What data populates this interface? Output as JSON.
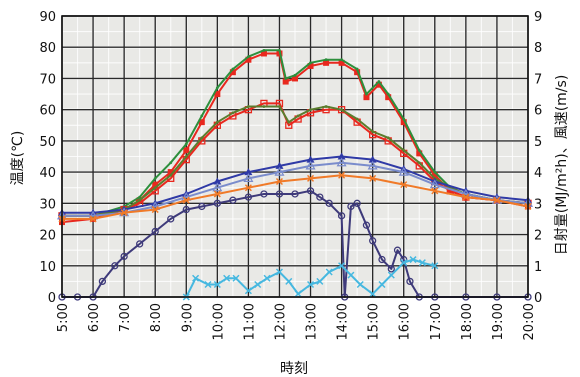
{
  "chart_data": {
    "type": "line",
    "xlabel": "時刻",
    "ylabel_left": "温度(℃)",
    "ylabel_right": "日射量(MJ/m²h)、風速(m/s)",
    "xlim": [
      5,
      20
    ],
    "ylim_left": [
      0,
      90
    ],
    "ylim_right": [
      0,
      9
    ],
    "grid": true,
    "x_tick_labels": [
      "5:00",
      "6:00",
      "7:00",
      "8:00",
      "9:00",
      "10:00",
      "11:00",
      "12:00",
      "13:00",
      "14:00",
      "15:00",
      "16:00",
      "17:00",
      "18:00",
      "19:00",
      "20:00"
    ],
    "y_left_tick_labels": [
      "0",
      "10",
      "20",
      "30",
      "40",
      "50",
      "60",
      "70",
      "80",
      "90"
    ],
    "y_right_tick_labels": [
      "0",
      "1",
      "2",
      "3",
      "4",
      "5",
      "6",
      "7",
      "8",
      "9"
    ],
    "series": [
      {
        "color": "#e8281e",
        "marker": "square-filled",
        "axis": "left",
        "x": [
          5,
          6,
          7,
          7.5,
          8,
          8.5,
          9,
          9.5,
          10,
          10.5,
          11,
          11.5,
          12,
          12.2,
          12.5,
          13,
          13.5,
          14,
          14.5,
          14.8,
          15.2,
          15.5,
          16,
          16.5,
          17,
          17.5,
          18,
          19,
          20
        ],
        "y": [
          24,
          25,
          28,
          31,
          36,
          40,
          47,
          56,
          65,
          72,
          76,
          78,
          78,
          69,
          70,
          74,
          75,
          75,
          72,
          64,
          68,
          64,
          56,
          46,
          39,
          34,
          32,
          31,
          29
        ]
      },
      {
        "color": "#2d8f3c",
        "marker": "line",
        "axis": "left",
        "x": [
          5,
          6,
          7,
          7.5,
          8,
          8.5,
          9,
          9.5,
          10,
          10.5,
          11,
          11.5,
          12,
          12.2,
          12.5,
          13,
          13.5,
          14,
          14.5,
          14.8,
          15.2,
          15.5,
          16,
          16.5,
          17,
          17.5,
          18,
          19,
          20
        ],
        "y": [
          26,
          26,
          29,
          32,
          38,
          43,
          49,
          58,
          67,
          73,
          77,
          79,
          79,
          70,
          71,
          75,
          76,
          76,
          73,
          65,
          69,
          65,
          57,
          47,
          40,
          35,
          33,
          31,
          30
        ]
      },
      {
        "color": "#e8281e",
        "marker": "square-open",
        "axis": "left",
        "x": [
          5,
          6,
          7,
          7.5,
          8,
          8.5,
          9,
          9.5,
          10,
          10.5,
          11,
          11.5,
          12,
          12.3,
          12.6,
          13,
          13.5,
          14,
          14.5,
          15,
          15.5,
          16,
          16.5,
          17,
          17.5,
          18,
          19,
          20
        ],
        "y": [
          26,
          26,
          28,
          30,
          34,
          38,
          44,
          50,
          55,
          58,
          60,
          62,
          62,
          55,
          57,
          59,
          60,
          60,
          56,
          52,
          50,
          46,
          42,
          37,
          34,
          32,
          31,
          30
        ]
      },
      {
        "color": "#5a7e2e",
        "marker": "line",
        "axis": "left",
        "x": [
          5,
          6,
          7,
          7.5,
          8,
          8.5,
          9,
          9.5,
          10,
          10.5,
          11,
          11.5,
          12,
          12.3,
          12.6,
          13,
          13.5,
          14,
          14.5,
          15,
          15.5,
          16,
          16.5,
          17,
          17.5,
          18,
          19,
          20
        ],
        "y": [
          26,
          26,
          28,
          31,
          35,
          39,
          45,
          51,
          56,
          59,
          61,
          61,
          61,
          56,
          58,
          60,
          61,
          60,
          57,
          53,
          51,
          47,
          43,
          38,
          35,
          33,
          31,
          30
        ]
      },
      {
        "color": "#2f3aa6",
        "marker": "triangle-filled",
        "axis": "left",
        "x": [
          5,
          6,
          7,
          8,
          9,
          10,
          11,
          12,
          13,
          14,
          15,
          16,
          17,
          18,
          19,
          20
        ],
        "y": [
          27,
          27,
          28,
          30,
          33,
          37,
          40,
          42,
          44,
          45,
          44,
          41,
          37,
          34,
          32,
          31
        ]
      },
      {
        "color": "#7a8ccc",
        "marker": "triangle-open",
        "axis": "left",
        "x": [
          5,
          6,
          7,
          8,
          9,
          10,
          11,
          12,
          13,
          14,
          15,
          16,
          17,
          18,
          19,
          20
        ],
        "y": [
          26,
          26,
          27,
          29,
          32,
          35,
          38,
          40,
          42,
          43,
          42,
          40,
          36,
          33,
          31,
          30
        ]
      },
      {
        "color": "#f07a28",
        "marker": "x",
        "axis": "left",
        "x": [
          5,
          6,
          7,
          8,
          9,
          10,
          11,
          12,
          13,
          14,
          15,
          16,
          17,
          18,
          19,
          20
        ],
        "y": [
          25,
          25,
          27,
          28,
          31,
          33,
          35,
          37,
          38,
          39,
          38,
          36,
          34,
          32,
          31,
          29
        ]
      },
      {
        "color": "#3e3a7a",
        "marker": "circle-open",
        "axis": "right",
        "x": [
          5,
          5.5,
          6,
          6.3,
          6.7,
          7,
          7.5,
          8,
          8.5,
          9,
          9.5,
          10,
          10.5,
          11,
          11.5,
          12,
          12.5,
          13,
          13.3,
          13.6,
          14,
          14.1,
          14.3,
          14.5,
          14.8,
          15,
          15.3,
          15.6,
          15.8,
          16,
          16.2,
          16.5,
          17,
          18,
          19,
          20
        ],
        "y": [
          0,
          0,
          0,
          0.5,
          1,
          1.3,
          1.7,
          2.1,
          2.5,
          2.8,
          2.9,
          3.0,
          3.1,
          3.2,
          3.3,
          3.3,
          3.3,
          3.4,
          3.2,
          3.0,
          2.6,
          0,
          2.9,
          3.0,
          2.3,
          1.8,
          1.2,
          0.9,
          1.5,
          1.2,
          0.5,
          0,
          0,
          0,
          0,
          0
        ]
      },
      {
        "color": "#46b8e0",
        "marker": "x",
        "axis": "right",
        "x": [
          9,
          9.3,
          9.7,
          10,
          10.3,
          10.6,
          11,
          11.3,
          11.6,
          12,
          12.3,
          12.6,
          13,
          13.3,
          13.6,
          14,
          14.3,
          14.6,
          15,
          15.3,
          15.6,
          16,
          16.3,
          16.6,
          17
        ],
        "y": [
          0,
          0.6,
          0.4,
          0.4,
          0.6,
          0.6,
          0.2,
          0.4,
          0.6,
          0.8,
          0.5,
          0.1,
          0.4,
          0.5,
          0.8,
          1.0,
          0.7,
          0.4,
          0.1,
          0.4,
          0.7,
          1.1,
          1.2,
          1.1,
          1.0
        ]
      }
    ]
  }
}
